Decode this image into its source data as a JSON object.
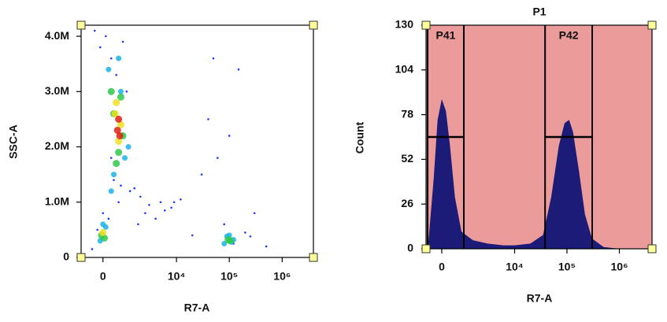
{
  "chart_data": [
    {
      "type": "scatter",
      "xscale": "biexponential",
      "x_label": "R7-A",
      "y_label": "SSC-A",
      "xlim": [
        -900,
        3900000
      ],
      "ylim": [
        0,
        4200000
      ],
      "xticks": [
        {
          "value": 0,
          "label": "0"
        },
        {
          "value": 10000,
          "label": "10⁴"
        },
        {
          "value": 100000,
          "label": "10⁵"
        },
        {
          "value": 1000000,
          "label": "10⁶"
        }
      ],
      "yticks": [
        {
          "value": 0,
          "label": "0"
        },
        {
          "value": 1000000,
          "label": "1.0M"
        },
        {
          "value": 2000000,
          "label": "2.0M"
        },
        {
          "value": 3000000,
          "label": "3.0M"
        },
        {
          "value": 4000000,
          "label": "4.0M"
        }
      ],
      "series": [
        {
          "color": "#1e3cff",
          "x": [
            -300,
            -100,
            100,
            300,
            500,
            800,
            1200,
            2000,
            3000,
            5000,
            8000,
            12000,
            -200,
            200,
            400,
            700,
            1500,
            2500,
            4000,
            6000,
            9000,
            20000,
            40000,
            60000,
            80000,
            100000,
            150000,
            200000,
            300000,
            500000,
            600,
            300,
            1000,
            1800,
            50000,
            120000,
            30000,
            250000,
            -400,
            0
          ],
          "values": [
            4100000,
            3800000,
            4000000,
            3600000,
            3300000,
            3900000,
            1200000,
            1100000,
            950000,
            1000000,
            900000,
            1050000,
            500000,
            700000,
            1400000,
            1300000,
            1250000,
            800000,
            700000,
            850000,
            1000000,
            400000,
            2500000,
            1800000,
            600000,
            2200000,
            3400000,
            450000,
            800000,
            200000,
            1000000,
            1800000,
            3000000,
            600000,
            3600000,
            250000,
            1500000,
            380000,
            150000,
            800000
          ]
        },
        {
          "color": "#19b4e6",
          "x": [
            200,
            400,
            700,
            900,
            300,
            600,
            1100,
            -100,
            100,
            0,
            80000,
            100000,
            120000,
            90000,
            110000
          ],
          "values": [
            3400000,
            1500000,
            3000000,
            1800000,
            1200000,
            3600000,
            2000000,
            300000,
            550000,
            600000,
            250000,
            400000,
            320000,
            380000,
            280000
          ]
        },
        {
          "color": "#2ec84a",
          "x": [
            300,
            500,
            800,
            400,
            700,
            600,
            -50,
            50,
            95000,
            105000
          ],
          "values": [
            3000000,
            1700000,
            2200000,
            2600000,
            2900000,
            1900000,
            400000,
            350000,
            320000,
            300000
          ]
        },
        {
          "color": "#f0e020",
          "x": [
            500,
            700,
            600,
            450,
            0
          ],
          "values": [
            2800000,
            2400000,
            2100000,
            2600000,
            450000
          ]
        },
        {
          "color": "#e02010",
          "x": [
            600,
            550,
            650
          ],
          "values": [
            2500000,
            2300000,
            2200000
          ]
        }
      ]
    },
    {
      "type": "area",
      "xscale": "biexponential",
      "title": "P1",
      "x_label": "R7-A",
      "y_label": "Count",
      "xlim": [
        -610,
        4200000
      ],
      "ylim": [
        0,
        130
      ],
      "xticks": [
        {
          "value": 0,
          "label": "0"
        },
        {
          "value": 10000,
          "label": "10⁴"
        },
        {
          "value": 100000,
          "label": "10⁵"
        },
        {
          "value": 1000000,
          "label": "10⁶"
        }
      ],
      "yticks": [
        0,
        26,
        52,
        78,
        104,
        130
      ],
      "background": "#ec9b9b",
      "color": "#1c1c78",
      "x": [
        -610,
        -500,
        -300,
        -150,
        0,
        150,
        300,
        500,
        800,
        1500,
        3000,
        6000,
        10000,
        20000,
        35000,
        50000,
        70000,
        90000,
        110000,
        130000,
        170000,
        220000,
        300000,
        500000,
        1000000,
        4200000
      ],
      "values": [
        0,
        5,
        40,
        75,
        87,
        80,
        60,
        30,
        10,
        5,
        3,
        2,
        2,
        3,
        8,
        30,
        60,
        73,
        75,
        68,
        45,
        20,
        6,
        1,
        0,
        0
      ],
      "gates": [
        {
          "name": "P41",
          "x": [
            -540,
            922
          ],
          "y": 65
        },
        {
          "name": "P42",
          "x": [
            38200,
            303000
          ],
          "y": 65
        }
      ]
    }
  ]
}
